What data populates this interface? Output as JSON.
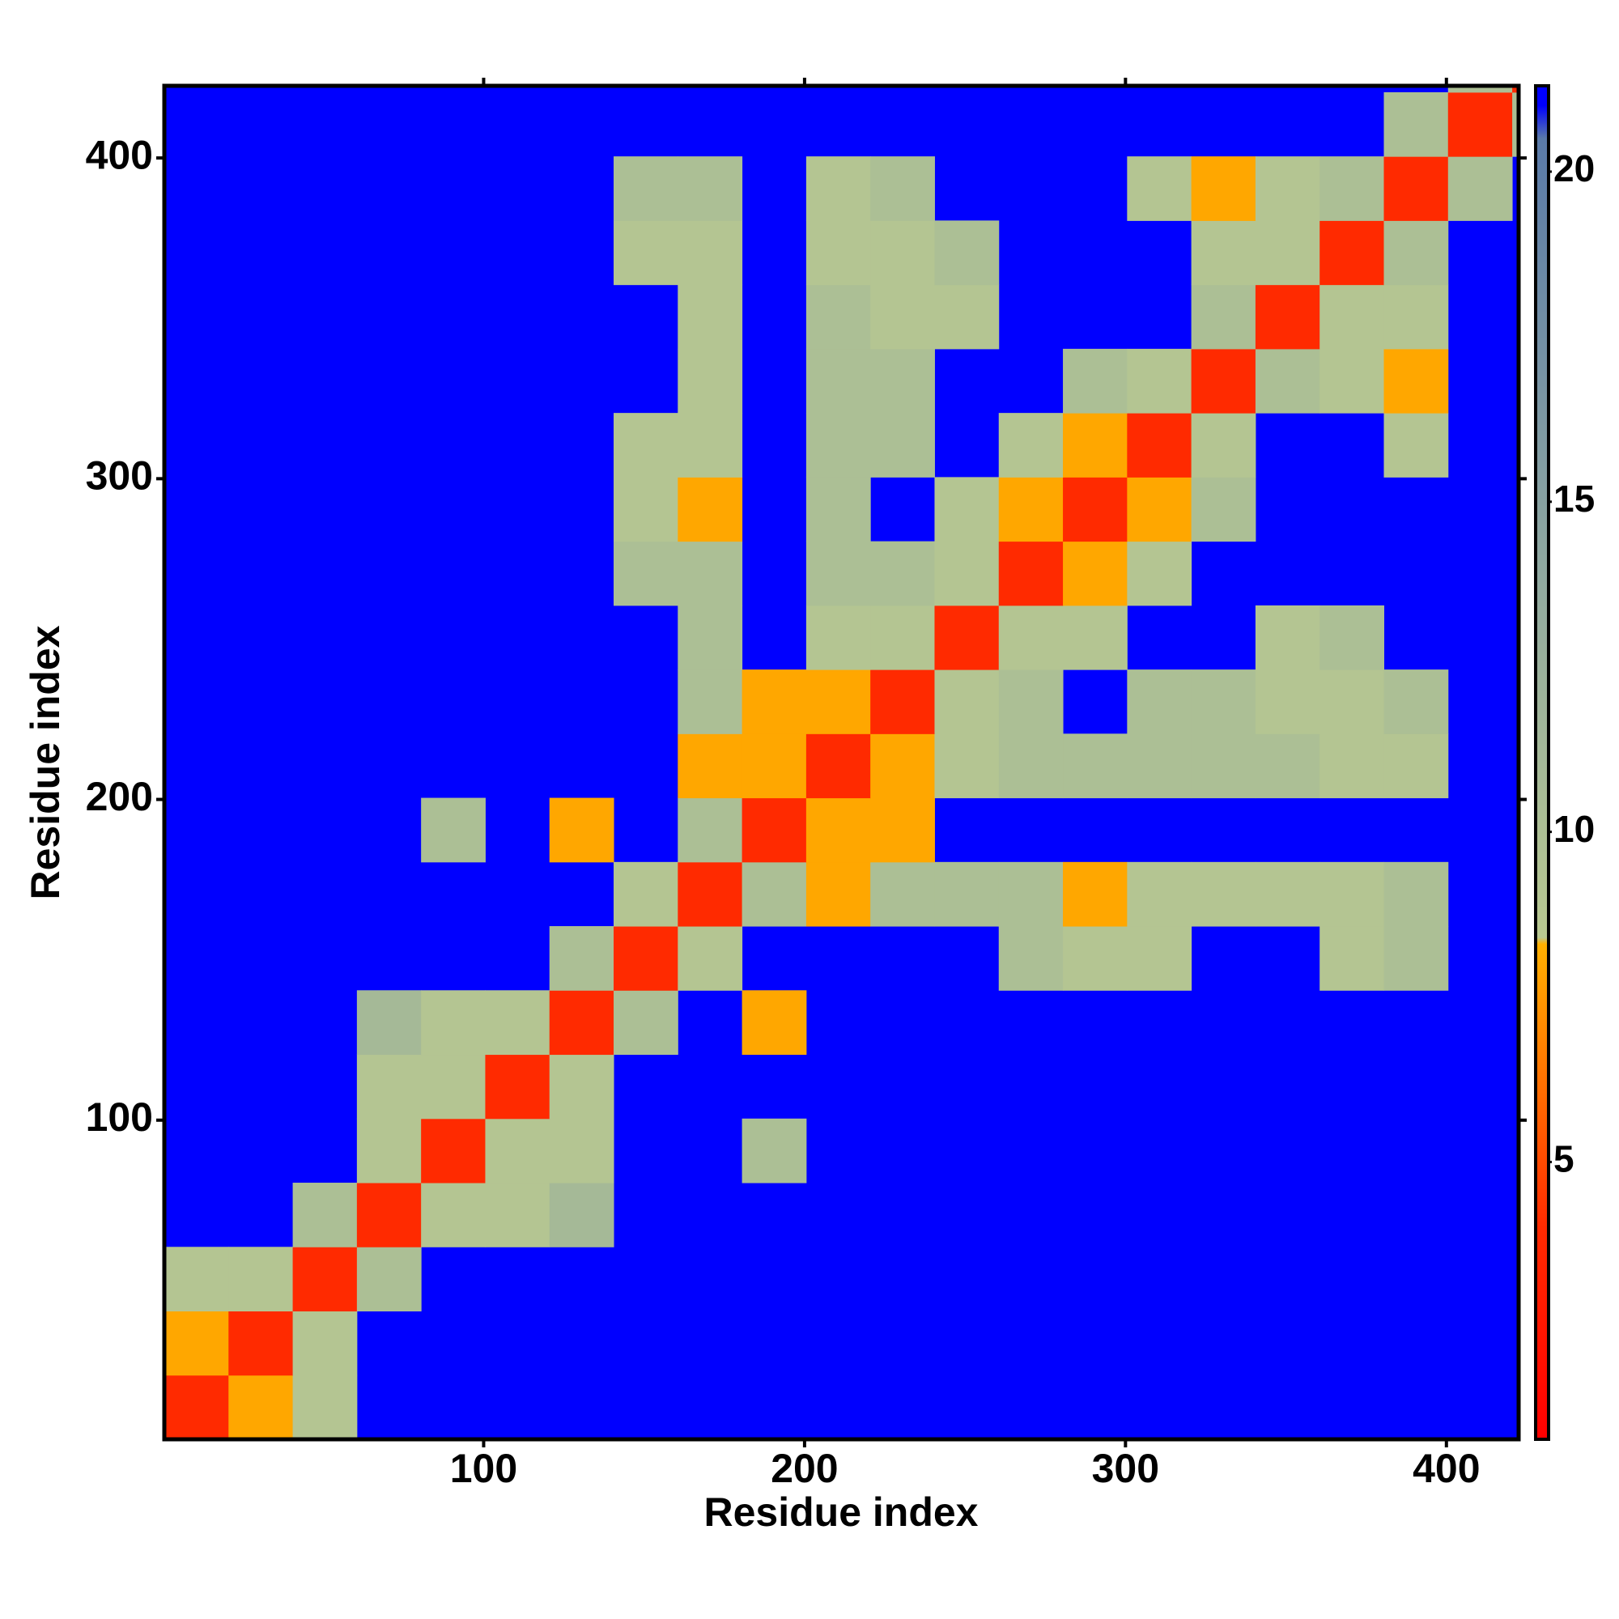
{
  "chart_data": {
    "type": "heatmap",
    "x_label": "Residue index",
    "y_label": "Residue index",
    "x_bins": [
      0.5,
      20.5,
      40.5,
      60.5,
      80.5,
      100.5,
      120.5,
      140.5,
      160.5,
      180.5,
      200.5,
      220.5,
      240.5,
      260.5,
      280.5,
      300.5,
      320.5,
      340.5,
      360.5,
      380.5,
      400.5,
      420.5,
      422.5
    ],
    "y_bins": [
      0.5,
      20.5,
      40.5,
      60.5,
      80.5,
      100.5,
      120.5,
      140.5,
      160.5,
      180.5,
      200.5,
      220.5,
      240.5,
      260.5,
      280.5,
      300.5,
      320.5,
      340.5,
      360.5,
      380.5,
      400.5,
      420.5,
      422.5
    ],
    "values": [
      [
        4,
        8,
        9,
        null,
        null,
        null,
        null,
        null,
        null,
        null,
        null,
        null,
        null,
        null,
        null,
        null,
        null,
        null,
        null,
        null,
        null,
        null
      ],
      [
        8,
        4,
        9,
        null,
        null,
        null,
        null,
        null,
        null,
        null,
        null,
        null,
        null,
        null,
        null,
        null,
        null,
        null,
        null,
        null,
        null,
        null
      ],
      [
        9,
        9,
        4,
        10,
        null,
        null,
        null,
        null,
        null,
        null,
        null,
        null,
        null,
        null,
        null,
        null,
        null,
        null,
        null,
        null,
        null,
        null
      ],
      [
        null,
        null,
        10,
        4,
        9,
        9,
        11,
        null,
        null,
        null,
        null,
        null,
        null,
        null,
        null,
        null,
        null,
        null,
        null,
        null,
        null,
        null
      ],
      [
        null,
        null,
        null,
        9,
        4,
        9,
        9,
        null,
        null,
        10,
        null,
        null,
        null,
        null,
        null,
        null,
        null,
        null,
        null,
        null,
        null,
        null
      ],
      [
        null,
        null,
        null,
        9,
        9,
        4,
        9,
        null,
        null,
        null,
        null,
        null,
        null,
        null,
        null,
        null,
        null,
        null,
        null,
        null,
        null,
        null
      ],
      [
        null,
        null,
        null,
        11,
        9,
        9,
        4,
        10,
        null,
        8,
        null,
        null,
        null,
        null,
        null,
        null,
        null,
        null,
        null,
        null,
        null,
        null
      ],
      [
        null,
        null,
        null,
        null,
        null,
        null,
        10,
        4,
        9,
        null,
        null,
        null,
        null,
        10,
        9,
        9,
        null,
        null,
        9,
        10,
        null,
        null
      ],
      [
        null,
        null,
        null,
        null,
        null,
        null,
        null,
        9,
        4,
        10,
        8,
        10,
        10,
        10,
        8,
        9,
        9,
        9,
        9,
        10,
        null,
        null
      ],
      [
        null,
        null,
        null,
        null,
        10,
        null,
        8,
        null,
        10,
        4,
        8,
        8,
        null,
        null,
        null,
        null,
        null,
        null,
        null,
        null,
        null,
        null
      ],
      [
        null,
        null,
        null,
        null,
        null,
        null,
        null,
        null,
        8,
        8,
        4,
        8,
        9,
        10,
        10,
        10,
        10,
        10,
        9,
        9,
        null,
        null
      ],
      [
        null,
        null,
        null,
        null,
        null,
        null,
        null,
        null,
        10,
        8,
        8,
        4,
        9,
        10,
        null,
        10,
        10,
        9,
        9,
        10,
        null,
        null
      ],
      [
        null,
        null,
        null,
        null,
        null,
        null,
        null,
        null,
        10,
        null,
        9,
        9,
        4,
        9,
        9,
        null,
        null,
        9,
        10,
        null,
        null,
        null
      ],
      [
        null,
        null,
        null,
        null,
        null,
        null,
        null,
        10,
        10,
        null,
        10,
        10,
        9,
        4,
        8,
        9,
        null,
        null,
        null,
        null,
        null,
        null
      ],
      [
        null,
        null,
        null,
        null,
        null,
        null,
        null,
        9,
        8,
        null,
        10,
        null,
        9,
        8,
        4,
        8,
        10,
        null,
        null,
        null,
        null,
        null
      ],
      [
        null,
        null,
        null,
        null,
        null,
        null,
        null,
        9,
        9,
        null,
        10,
        10,
        null,
        9,
        8,
        4,
        9,
        null,
        null,
        9,
        null,
        null
      ],
      [
        null,
        null,
        null,
        null,
        null,
        null,
        null,
        null,
        9,
        null,
        10,
        10,
        null,
        null,
        10,
        9,
        4,
        10,
        9,
        8,
        null,
        null
      ],
      [
        null,
        null,
        null,
        null,
        null,
        null,
        null,
        null,
        9,
        null,
        10,
        9,
        9,
        null,
        null,
        null,
        10,
        4,
        9,
        9,
        null,
        null
      ],
      [
        null,
        null,
        null,
        null,
        null,
        null,
        null,
        9,
        9,
        null,
        9,
        9,
        10,
        null,
        null,
        null,
        9,
        9,
        4,
        10,
        null,
        null
      ],
      [
        null,
        null,
        null,
        null,
        null,
        null,
        null,
        10,
        10,
        null,
        9,
        10,
        null,
        null,
        null,
        9,
        8,
        9,
        10,
        4,
        10,
        null
      ],
      [
        null,
        null,
        null,
        null,
        null,
        null,
        null,
        null,
        null,
        null,
        null,
        null,
        null,
        null,
        null,
        null,
        null,
        null,
        null,
        10,
        4,
        10
      ],
      [
        null,
        null,
        null,
        null,
        null,
        null,
        null,
        null,
        null,
        null,
        null,
        null,
        null,
        null,
        null,
        null,
        null,
        null,
        null,
        null,
        10,
        4
      ]
    ],
    "xlim": [
      0.5,
      422.5
    ],
    "ylim": [
      0.5,
      422.5
    ],
    "xticks": [
      100,
      200,
      300,
      400
    ],
    "yticks": [
      100,
      200,
      300,
      400
    ],
    "clim": [
      0.8,
      21.3
    ],
    "colorbar_ticks": [
      5,
      10,
      15,
      20
    ],
    "colorscale": [
      {
        "value": 0.8,
        "color": "#ff0000"
      },
      {
        "value": 4,
        "color": "#ff2a00"
      },
      {
        "value": 6,
        "color": "#ff6a00"
      },
      {
        "value": 8.3,
        "color": "#ffb000"
      },
      {
        "value": 8.4,
        "color": "#b8c890"
      },
      {
        "value": 14,
        "color": "#8fa8a0"
      },
      {
        "value": 20.5,
        "color": "#5a7aa8"
      },
      {
        "value": 21,
        "color": "#0000ff"
      },
      {
        "value": 21.3,
        "color": "#0000ff"
      }
    ]
  }
}
